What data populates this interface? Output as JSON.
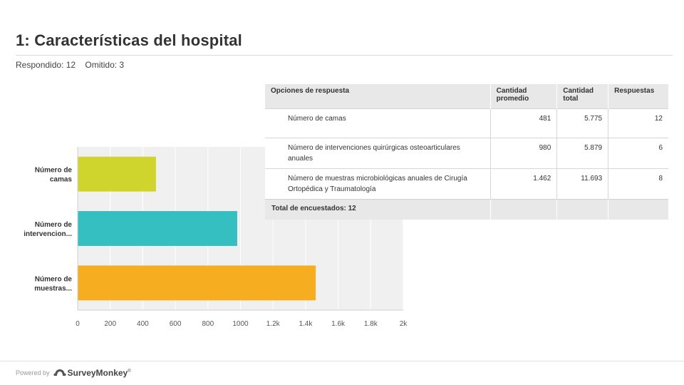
{
  "header": {
    "title": "1: Características del hospital",
    "answered": "Respondido: 12",
    "skipped": "Omitido: 3"
  },
  "chart_data": {
    "type": "bar",
    "orientation": "horizontal",
    "categories": [
      "Número de camas",
      "Número de intervencion...",
      "Número de muestras..."
    ],
    "category_lines": [
      [
        "Número de",
        "camas"
      ],
      [
        "Número de",
        "intervencion..."
      ],
      [
        "Número de",
        "muestras..."
      ]
    ],
    "values": [
      481,
      980,
      1462
    ],
    "colors": [
      "#cfd52d",
      "#35bfc1",
      "#f6ae20"
    ],
    "xlim": [
      0,
      2000
    ],
    "xticks": [
      0,
      200,
      400,
      600,
      800,
      1000,
      1200,
      1400,
      1600,
      1800,
      2000
    ],
    "xtick_labels": [
      "0",
      "200",
      "400",
      "600",
      "800",
      "1000",
      "1.2k",
      "1.4k",
      "1.6k",
      "1.8k",
      "2k"
    ],
    "grid": true,
    "title": "",
    "xlabel": "",
    "ylabel": ""
  },
  "table": {
    "headers": {
      "option": "Opciones de respuesta",
      "avg": [
        "Cantidad",
        "promedio"
      ],
      "total": [
        "Cantidad",
        "total"
      ],
      "responses": "Respuestas"
    },
    "rows": [
      {
        "option": "Número de camas",
        "avg": "481",
        "total": "5.775",
        "responses": "12"
      },
      {
        "option": "Número de intervenciones quirúrgicas osteoarticulares anuales",
        "avg": "980",
        "total": "5.879",
        "responses": "6"
      },
      {
        "option": "Número de muestras microbiológicas anuales de Cirugía Ortopédica y Traumatología",
        "avg": "1.462",
        "total": "11.693",
        "responses": "8"
      }
    ],
    "footer": "Total de encuestados: 12"
  },
  "footer": {
    "powered_by": "Powered by",
    "brand": "SurveyMonkey",
    "trademark": "®",
    "logo_icon": "surveymonkey-logo-icon"
  }
}
